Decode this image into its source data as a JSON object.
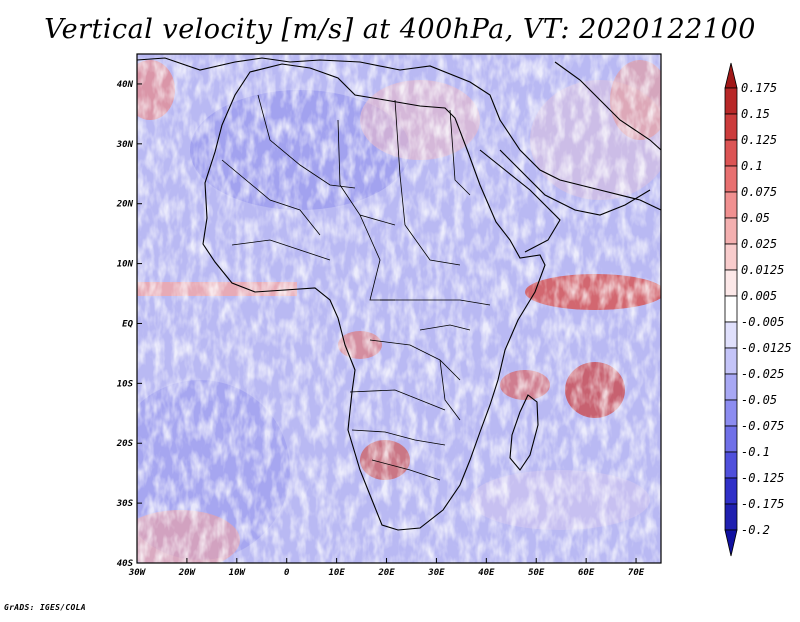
{
  "title": "Vertical velocity [m/s] at 400hPa, VT: 2020122100",
  "credit": "GrADS: IGES/COLA",
  "map": {
    "lon_range": [
      -30,
      75
    ],
    "lat_range": [
      -40,
      45
    ],
    "lon_ticks": [
      {
        "value": -30,
        "label": "30W"
      },
      {
        "value": -20,
        "label": "20W"
      },
      {
        "value": -10,
        "label": "10W"
      },
      {
        "value": 0,
        "label": "0"
      },
      {
        "value": 10,
        "label": "10E"
      },
      {
        "value": 20,
        "label": "20E"
      },
      {
        "value": 30,
        "label": "30E"
      },
      {
        "value": 40,
        "label": "40E"
      },
      {
        "value": 50,
        "label": "50E"
      },
      {
        "value": 60,
        "label": "60E"
      },
      {
        "value": 70,
        "label": "70E"
      }
    ],
    "lat_ticks": [
      {
        "value": 40,
        "label": "40N"
      },
      {
        "value": 30,
        "label": "30N"
      },
      {
        "value": 20,
        "label": "20N"
      },
      {
        "value": 10,
        "label": "10N"
      },
      {
        "value": 0,
        "label": "EQ"
      },
      {
        "value": -10,
        "label": "10S"
      },
      {
        "value": -20,
        "label": "20S"
      },
      {
        "value": -30,
        "label": "30S"
      },
      {
        "value": -40,
        "label": "40S"
      }
    ]
  },
  "colorbar": {
    "labels": [
      "0.175",
      "0.15",
      "0.125",
      "0.1",
      "0.075",
      "0.05",
      "0.025",
      "0.0125",
      "0.005",
      "-0.005",
      "-0.0125",
      "-0.025",
      "-0.05",
      "-0.075",
      "-0.1",
      "-0.125",
      "-0.175",
      "-0.2"
    ],
    "colors": [
      "#a01818",
      "#b82828",
      "#cc3c3c",
      "#dc5454",
      "#e87070",
      "#f09090",
      "#f4b0b0",
      "#f8cccc",
      "#fce8e8",
      "#ffffff",
      "#e0e0fc",
      "#c4c4f8",
      "#a8a8f4",
      "#8c8cf0",
      "#7070e8",
      "#5050dc",
      "#3030c8",
      "#2020b0",
      "#1010a0"
    ]
  }
}
